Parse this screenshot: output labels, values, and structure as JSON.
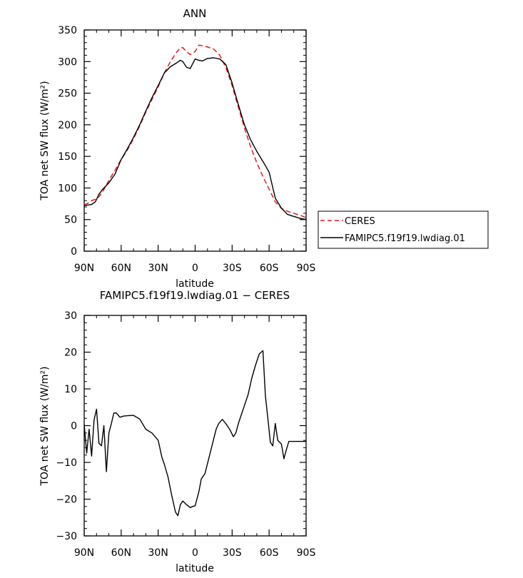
{
  "chart_data": [
    {
      "type": "line",
      "title": "ANN",
      "xlabel": "latitude",
      "ylabel": "TOA net SW flux (W/m²)",
      "xlim": [
        90,
        -90
      ],
      "ylim": [
        0,
        350
      ],
      "x_ticks": [
        90,
        60,
        30,
        0,
        -30,
        -60,
        -90
      ],
      "x_tick_labels": [
        "90N",
        "60N",
        "30N",
        "0",
        "30S",
        "60S",
        "90S"
      ],
      "y_ticks": [
        0,
        50,
        100,
        150,
        200,
        250,
        300,
        350
      ],
      "y_tick_labels": [
        "0",
        "50",
        "100",
        "150",
        "200",
        "250",
        "300",
        "350"
      ],
      "legend": "right, outside plot",
      "series": [
        {
          "name": "CERES",
          "color": "#e31a1c",
          "dash": "dashed",
          "x": [
            90,
            87,
            84,
            81,
            78,
            75,
            70,
            65,
            60,
            55,
            50,
            45,
            40,
            35,
            30,
            25,
            20,
            15,
            12,
            10,
            7,
            4,
            0,
            -3,
            -6,
            -10,
            -15,
            -20,
            -25,
            -30,
            -35,
            -40,
            -45,
            -50,
            -55,
            -60,
            -65,
            -70,
            -75,
            -80,
            -85,
            -90
          ],
          "y": [
            73,
            76,
            80,
            82,
            86,
            94,
            112,
            128,
            145,
            160,
            178,
            198,
            220,
            240,
            260,
            282,
            300,
            315,
            322,
            322,
            316,
            311,
            316,
            326,
            325,
            323,
            320,
            310,
            290,
            262,
            228,
            195,
            165,
            140,
            118,
            98,
            78,
            68,
            63,
            60,
            57,
            53
          ]
        },
        {
          "name": "FAMIPC5.f19f19.lwdiag.01",
          "color": "#000000",
          "dash": "solid",
          "x": [
            90,
            87,
            84,
            81,
            78,
            75,
            70,
            65,
            60,
            55,
            50,
            45,
            40,
            35,
            30,
            25,
            20,
            15,
            12,
            10,
            7,
            4,
            0,
            -3,
            -6,
            -10,
            -15,
            -20,
            -25,
            -30,
            -35,
            -40,
            -45,
            -50,
            -55,
            -60,
            -65,
            -70,
            -75,
            -80,
            -85,
            -90
          ],
          "y": [
            72,
            73,
            74,
            78,
            90,
            98,
            108,
            122,
            145,
            162,
            180,
            200,
            222,
            243,
            262,
            282,
            292,
            298,
            302,
            300,
            291,
            289,
            304,
            302,
            301,
            305,
            306,
            304,
            295,
            266,
            232,
            200,
            176,
            158,
            142,
            125,
            84,
            68,
            58,
            55,
            52,
            50
          ]
        }
      ]
    },
    {
      "type": "line",
      "title": "FAMIPC5.f19f19.lwdiag.01 − CERES",
      "xlabel": "latitude",
      "ylabel": "TOA net SW flux (W/m²)",
      "xlim": [
        90,
        -90
      ],
      "ylim": [
        -30,
        30
      ],
      "x_ticks": [
        90,
        60,
        30,
        0,
        -30,
        -60,
        -90
      ],
      "x_tick_labels": [
        "90N",
        "60N",
        "30N",
        "0",
        "30S",
        "60S",
        "90S"
      ],
      "y_ticks": [
        -30,
        -20,
        -10,
        0,
        10,
        20,
        30
      ],
      "y_tick_labels": [
        "−30",
        "−20",
        "−10",
        "0",
        "10",
        "20",
        "30"
      ],
      "series": [
        {
          "color": "#000000",
          "dash": "solid",
          "x": [
            90,
            88,
            86,
            84,
            82,
            80,
            78,
            76,
            74,
            72,
            70,
            68,
            66,
            64,
            61,
            58,
            55,
            50,
            45,
            40,
            35,
            30,
            27,
            25,
            22,
            19,
            16,
            14,
            12,
            10,
            7,
            4,
            2,
            0,
            -3,
            -5,
            -8,
            -11,
            -14,
            -17,
            -19,
            -22,
            -25,
            -28,
            -31,
            -33,
            -35,
            -37,
            -40,
            -43,
            -46,
            -49,
            -52,
            -55,
            -57,
            -59,
            -61,
            -63,
            -65,
            -67,
            -70,
            -72,
            -74,
            -76,
            -78,
            -80,
            -82,
            -84,
            -86,
            -88,
            -90
          ],
          "y": [
            0.3,
            -7.5,
            -1.0,
            -8.3,
            1.5,
            4.5,
            -4.8,
            -5.5,
            0.0,
            -12.5,
            -2.0,
            0.5,
            3.4,
            3.5,
            2.3,
            2.6,
            2.7,
            2.8,
            1.8,
            -1.0,
            -2.0,
            -4.0,
            -8.5,
            -10.5,
            -14.0,
            -19.0,
            -23.5,
            -24.5,
            -21.5,
            -20.5,
            -21.5,
            -22.3,
            -22.0,
            -21.8,
            -18.0,
            -14.5,
            -13.0,
            -9.0,
            -5.0,
            -1.0,
            0.5,
            1.7,
            0.5,
            -1.0,
            -3.0,
            -2.0,
            0.5,
            2.5,
            5.5,
            8.5,
            13.0,
            16.5,
            19.5,
            20.4,
            8.0,
            2.0,
            -4.5,
            -5.5,
            0.6,
            -4.0,
            -5.0,
            -9.0,
            -6.5,
            -4.3,
            -4.3,
            -4.3,
            -4.3,
            -4.3,
            -4.3,
            -4.3,
            -4.3
          ]
        }
      ]
    }
  ]
}
